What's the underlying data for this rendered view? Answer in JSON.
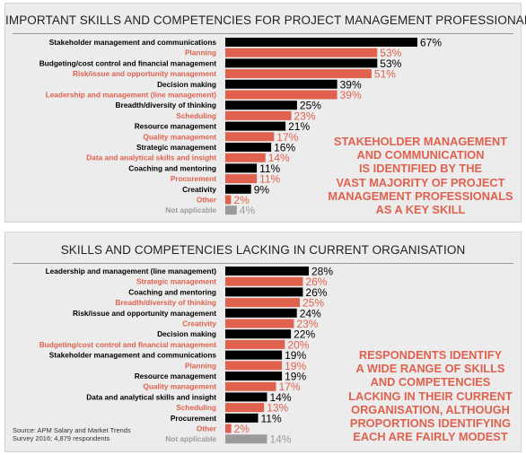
{
  "colors": {
    "black": "#000000",
    "salmon": "#e0614e",
    "gray": "#9b9b9b",
    "panel": "#ececec"
  },
  "chart_data": [
    {
      "type": "bar",
      "orientation": "horizontal",
      "title": "IMPORTANT SKILLS AND COMPETENCIES FOR PROJECT MANAGEMENT PROFESSIONALS",
      "unit": "%",
      "categories": [
        "Stakeholder management and communications",
        "Planning",
        "Budgeting/cost control and financial management",
        "Risk/issue and opportunity management",
        "Decision making",
        "Leadership and management (line management)",
        "Breadth/diversity of thinking",
        "Scheduling",
        "Resource management",
        "Quality management",
        "Strategic management",
        "Data and analytical skills and insight",
        "Coaching and mentoring",
        "Procurement",
        "Creativity",
        "Other",
        "Not applicable"
      ],
      "values": [
        67,
        53,
        53,
        51,
        39,
        39,
        25,
        23,
        21,
        17,
        16,
        14,
        11,
        11,
        9,
        2,
        4
      ],
      "labels": [
        "67%",
        "53%",
        "53%",
        "51%",
        "39%",
        "39%",
        "25%",
        "23%",
        "21%",
        "17%",
        "16%",
        "14%",
        "11%",
        "11%",
        "9%",
        "2%",
        "4%"
      ],
      "bar_colors": [
        "black",
        "salmon",
        "black",
        "salmon",
        "black",
        "salmon",
        "black",
        "salmon",
        "black",
        "salmon",
        "black",
        "salmon",
        "black",
        "salmon",
        "black",
        "salmon",
        "gray"
      ],
      "xlim": [
        0,
        67
      ],
      "annotation": "STAKEHOLDER MANAGEMENT\nAND COMMUNICATION\nIS IDENTIFIED BY THE\nVAST MAJORITY OF PROJECT\nMANAGEMENT PROFESSIONALS\nAS A KEY SKILL"
    },
    {
      "type": "bar",
      "orientation": "horizontal",
      "title": "SKILLS AND COMPETENCIES LACKING IN CURRENT ORGANISATION",
      "unit": "%",
      "categories": [
        "Leadership and management (line management)",
        "Strategic management",
        "Coaching and mentoring",
        "Breadth/diversity of thinking",
        "Risk/issue and opportunity management",
        "Creativity",
        "Decision making",
        "Budgeting/cost control and financial management",
        "Stakeholder management and communications",
        "Planning",
        "Resource management",
        "Quality management",
        "Data and analytical skills and insight",
        "Scheduling",
        "Procurement",
        "Other",
        "Not applicable"
      ],
      "values": [
        28,
        26,
        26,
        25,
        24,
        23,
        22,
        20,
        19,
        19,
        19,
        17,
        14,
        13,
        11,
        2,
        14
      ],
      "labels": [
        "28%",
        "26%",
        "26%",
        "25%",
        "24%",
        "23%",
        "22%",
        "20%",
        "19%",
        "19%",
        "19%",
        "17%",
        "14%",
        "13%",
        "11%",
        "2%",
        "14%"
      ],
      "bar_colors": [
        "black",
        "salmon",
        "black",
        "salmon",
        "black",
        "salmon",
        "black",
        "salmon",
        "black",
        "salmon",
        "black",
        "salmon",
        "black",
        "salmon",
        "black",
        "salmon",
        "gray"
      ],
      "xlim": [
        0,
        28
      ],
      "annotation": "RESPONDENTS IDENTIFY\nA WIDE RANGE OF SKILLS\nAND COMPETENCIES\nLACKING IN THEIR CURRENT\nORGANISATION, ALTHOUGH\nPROPORTIONS IDENTIFYING\nEACH ARE FAIRLY MODEST",
      "source": "Source: APM Salary and Market Trends\nSurvey 2016; 4,879 respondents"
    }
  ]
}
